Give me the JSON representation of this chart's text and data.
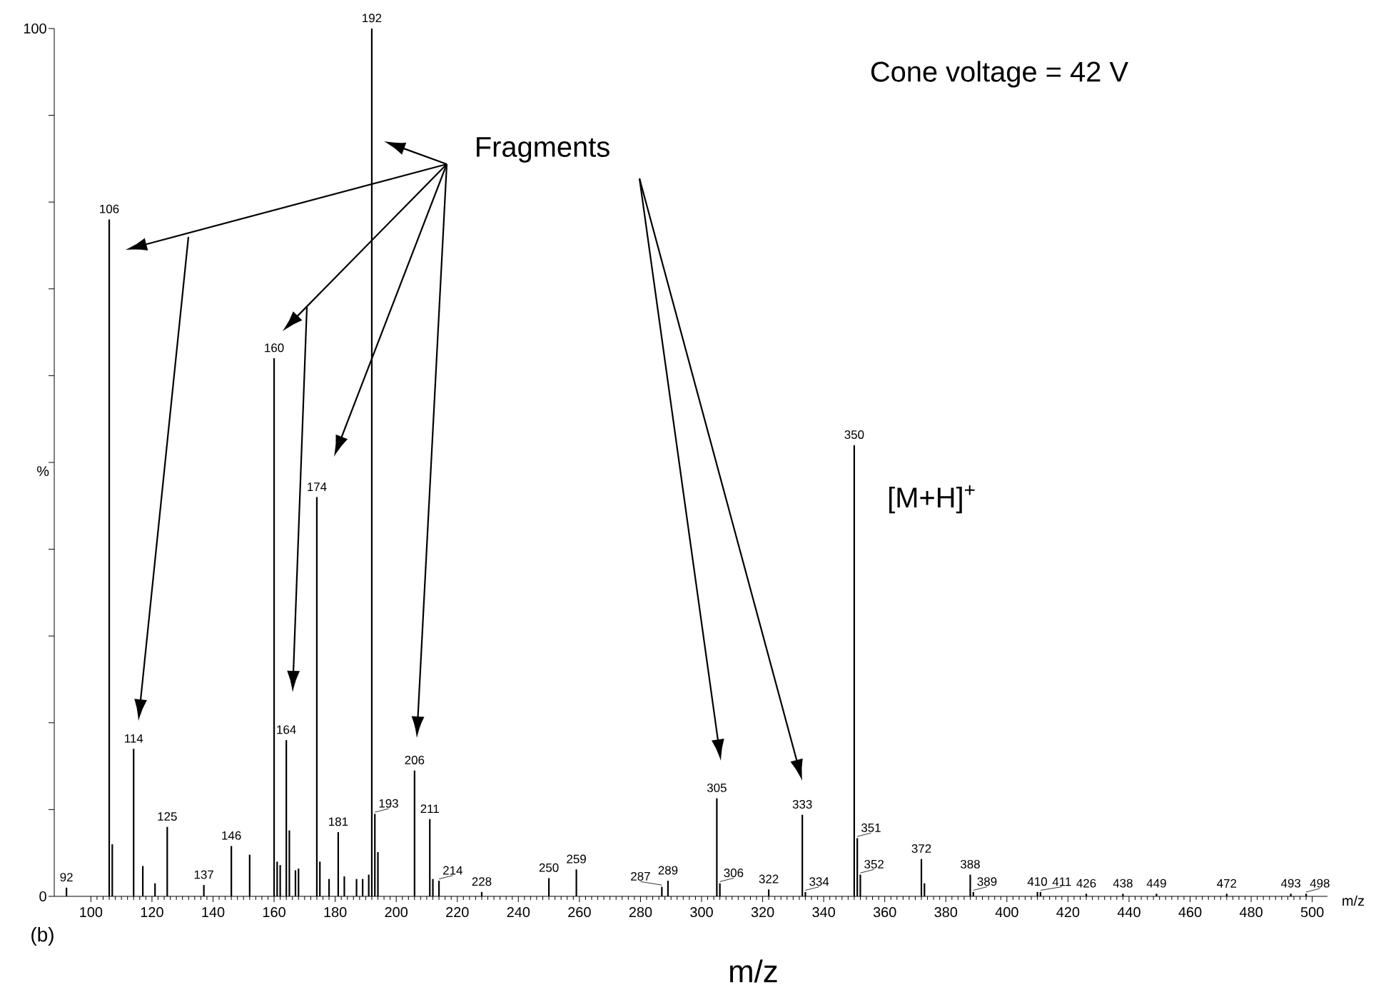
{
  "chart_data": {
    "type": "bar",
    "color": "#000000",
    "x": [
      92,
      106,
      107,
      114,
      117,
      121,
      125,
      137,
      146,
      152,
      160,
      161,
      162,
      164,
      165,
      167,
      168,
      174,
      175,
      178,
      181,
      183,
      187,
      189,
      191,
      192,
      193,
      194,
      206,
      211,
      212,
      214,
      228,
      250,
      259,
      287,
      289,
      305,
      306,
      322,
      333,
      334,
      350,
      351,
      352,
      372,
      373,
      388,
      389,
      410,
      411,
      426,
      438,
      449,
      472,
      493,
      498
    ],
    "values": [
      1,
      78,
      6,
      17,
      3.5,
      1.5,
      8,
      1.3,
      5.8,
      4.8,
      62,
      4,
      3.6,
      18,
      7.6,
      3,
      3.2,
      46,
      4,
      2,
      7.4,
      2.3,
      2,
      2,
      2.5,
      100,
      9.5,
      5.1,
      14.5,
      8.9,
      2,
      1.8,
      0.5,
      2.1,
      3.1,
      1.1,
      1.8,
      11.3,
      1.5,
      0.8,
      9.4,
      0.5,
      52,
      6.7,
      2.5,
      4.3,
      1.5,
      2.5,
      0.5,
      0.5,
      0.5,
      0.3,
      0.3,
      0.3,
      0.3,
      0.3,
      0.3
    ],
    "xlim": [
      88,
      505
    ],
    "ylim": [
      0,
      100
    ],
    "xticks": [
      100,
      120,
      140,
      160,
      180,
      200,
      220,
      240,
      260,
      280,
      300,
      320,
      340,
      360,
      380,
      400,
      420,
      440,
      460,
      480,
      500
    ],
    "yticks": [
      0,
      {
        "value": 10,
        "label": null
      },
      {
        "value": 20,
        "label": null
      },
      {
        "value": 30,
        "label": null
      },
      {
        "value": 40,
        "label": null
      },
      {
        "value": 50,
        "label": null
      },
      {
        "value": 60,
        "label": null
      },
      {
        "value": 70,
        "label": null
      },
      {
        "value": 80,
        "label": null
      },
      {
        "value": 90,
        "label": null
      },
      100
    ],
    "xlabel": "m/z",
    "ylabel": "%",
    "annotations": [
      "Cone voltage = 42 V",
      "Fragments",
      {
        "text": "[M+H]$^{+}$",
        "x": 350,
        "y": 52
      },
      "(b)",
      "m/z",
      {
        "text": "92",
        "x": 92,
        "y": 1
      },
      {
        "text": "106",
        "x": 106,
        "y": 78
      },
      {
        "text": "114",
        "x": 114,
        "y": 17
      },
      {
        "text": "125",
        "x": 125,
        "y": 8
      },
      {
        "text": "137",
        "x": 137,
        "y": 1.3
      },
      {
        "text": "146",
        "x": 146,
        "y": 5.8
      },
      {
        "text": "160",
        "x": 160,
        "y": 62
      },
      {
        "text": "164",
        "x": 164,
        "y": 18
      },
      {
        "text": "174",
        "x": 174,
        "y": 46
      },
      {
        "text": "181",
        "x": 181,
        "y": 7.4
      },
      {
        "text": "192",
        "x": 192,
        "y": 100
      },
      {
        "text": "193",
        "x": 193,
        "y": 9.5
      },
      {
        "text": "206",
        "x": 206,
        "y": 14.5
      },
      {
        "text": "211",
        "x": 211,
        "y": 8.9
      },
      {
        "text": "214",
        "x": 214,
        "y": 1.8
      },
      {
        "text": "228",
        "x": 228,
        "y": 0.5
      },
      {
        "text": "250",
        "x": 250,
        "y": 2.1
      },
      {
        "text": "259",
        "x": 259,
        "y": 3.1
      },
      {
        "text": "287",
        "x": 287,
        "y": 1.1
      },
      {
        "text": "289",
        "x": 289,
        "y": 1.8
      },
      {
        "text": "305",
        "x": 305,
        "y": 11.3
      },
      {
        "text": "306",
        "x": 306,
        "y": 1.5
      },
      {
        "text": "322",
        "x": 322,
        "y": 0.8
      },
      {
        "text": "333",
        "x": 333,
        "y": 9.4
      },
      {
        "text": "334",
        "x": 334,
        "y": 0.5
      },
      {
        "text": "350",
        "x": 350,
        "y": 52
      },
      {
        "text": "351",
        "x": 351,
        "y": 6.7
      },
      {
        "text": "352",
        "x": 352,
        "y": 2.5
      },
      {
        "text": "372",
        "x": 372,
        "y": 4.3
      },
      {
        "text": "388",
        "x": 388,
        "y": 2.5
      },
      {
        "text": "389",
        "x": 389,
        "y": 0.5
      },
      {
        "text": "410",
        "x": 410,
        "y": 0.5
      },
      {
        "text": "411",
        "x": 411,
        "y": 0.5
      },
      {
        "text": "426",
        "x": 426,
        "y": 0.3
      },
      {
        "text": "438",
        "x": 438,
        "y": 0.3
      },
      {
        "text": "449",
        "x": 449,
        "y": 0.3
      },
      {
        "text": "472",
        "x": 472,
        "y": 0.3
      },
      {
        "text": "493",
        "x": 493,
        "y": 0.3
      },
      {
        "text": "498",
        "x": 498,
        "y": 0.3
      }
    ]
  }
}
